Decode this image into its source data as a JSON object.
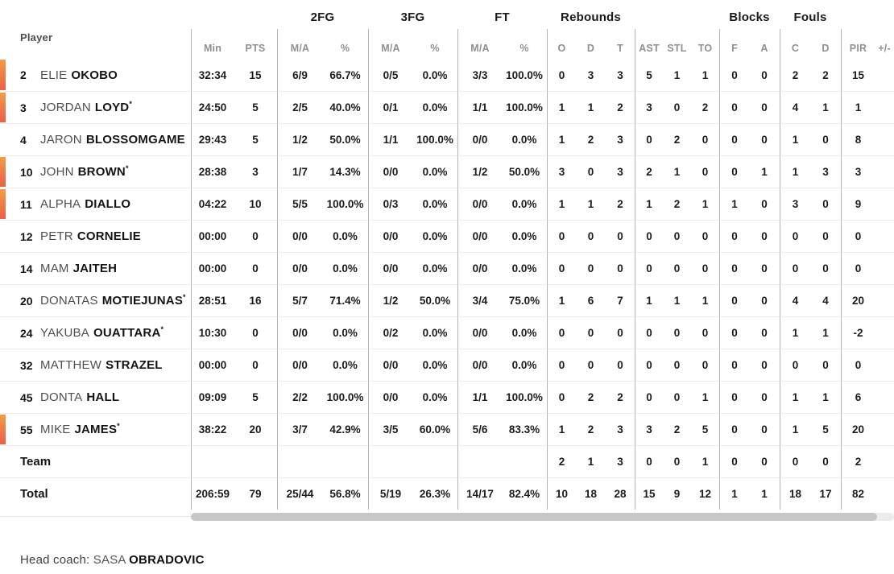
{
  "colors": {
    "on_court_bar_top": "#f59b47",
    "on_court_bar_bottom": "#ea5f45",
    "vertical_border": "#b2b2b2",
    "row_border": "#ededed",
    "subheader_text": "#909090",
    "scrollbar_thumb": "#c7c7c7"
  },
  "table": {
    "groups": {
      "fg2": "2FG",
      "fg3": "3FG",
      "ft": "FT",
      "rebounds": "Rebounds",
      "blocks": "Blocks",
      "fouls": "Fouls"
    },
    "headers": {
      "player": "Player",
      "min": "Min",
      "pts": "PTS",
      "ma": "M/A",
      "pct": "%",
      "reb_o": "O",
      "reb_d": "D",
      "reb_t": "T",
      "ast": "AST",
      "stl": "STL",
      "to": "TO",
      "blk_f": "F",
      "blk_a": "A",
      "foul_c": "C",
      "foul_d": "D",
      "pir": "PIR",
      "plus_minus": "+/-"
    },
    "starter_mark": "*",
    "players": [
      {
        "number": "2",
        "first": "ELIE",
        "last": "OKOBO",
        "starter": false,
        "on_court": true,
        "min": "32:34",
        "pts": "15",
        "fg2_ma": "6/9",
        "fg2_pct": "66.7%",
        "fg3_ma": "0/5",
        "fg3_pct": "0.0%",
        "ft_ma": "3/3",
        "ft_pct": "100.0%",
        "reb_o": "0",
        "reb_d": "3",
        "reb_t": "3",
        "ast": "5",
        "stl": "1",
        "to": "1",
        "blk_f": "0",
        "blk_a": "0",
        "foul_c": "2",
        "foul_d": "2",
        "pir": "15",
        "plus_minus": ""
      },
      {
        "number": "3",
        "first": "JORDAN",
        "last": "LOYD",
        "starter": true,
        "on_court": true,
        "min": "24:50",
        "pts": "5",
        "fg2_ma": "2/5",
        "fg2_pct": "40.0%",
        "fg3_ma": "0/1",
        "fg3_pct": "0.0%",
        "ft_ma": "1/1",
        "ft_pct": "100.0%",
        "reb_o": "1",
        "reb_d": "1",
        "reb_t": "2",
        "ast": "3",
        "stl": "0",
        "to": "2",
        "blk_f": "0",
        "blk_a": "0",
        "foul_c": "4",
        "foul_d": "1",
        "pir": "1",
        "plus_minus": ""
      },
      {
        "number": "4",
        "first": "JARON",
        "last": "BLOSSOMGAME",
        "starter": false,
        "on_court": false,
        "min": "29:43",
        "pts": "5",
        "fg2_ma": "1/2",
        "fg2_pct": "50.0%",
        "fg3_ma": "1/1",
        "fg3_pct": "100.0%",
        "ft_ma": "0/0",
        "ft_pct": "0.0%",
        "reb_o": "1",
        "reb_d": "2",
        "reb_t": "3",
        "ast": "0",
        "stl": "2",
        "to": "0",
        "blk_f": "0",
        "blk_a": "0",
        "foul_c": "1",
        "foul_d": "0",
        "pir": "8",
        "plus_minus": ""
      },
      {
        "number": "10",
        "first": "JOHN",
        "last": "BROWN",
        "starter": true,
        "on_court": true,
        "min": "28:38",
        "pts": "3",
        "fg2_ma": "1/7",
        "fg2_pct": "14.3%",
        "fg3_ma": "0/0",
        "fg3_pct": "0.0%",
        "ft_ma": "1/2",
        "ft_pct": "50.0%",
        "reb_o": "3",
        "reb_d": "0",
        "reb_t": "3",
        "ast": "2",
        "stl": "1",
        "to": "0",
        "blk_f": "0",
        "blk_a": "1",
        "foul_c": "1",
        "foul_d": "3",
        "pir": "3",
        "plus_minus": ""
      },
      {
        "number": "11",
        "first": "ALPHA",
        "last": "DIALLO",
        "starter": false,
        "on_court": true,
        "min": "04:22",
        "pts": "10",
        "fg2_ma": "5/5",
        "fg2_pct": "100.0%",
        "fg3_ma": "0/3",
        "fg3_pct": "0.0%",
        "ft_ma": "0/0",
        "ft_pct": "0.0%",
        "reb_o": "1",
        "reb_d": "1",
        "reb_t": "2",
        "ast": "1",
        "stl": "2",
        "to": "1",
        "blk_f": "1",
        "blk_a": "0",
        "foul_c": "3",
        "foul_d": "0",
        "pir": "9",
        "plus_minus": ""
      },
      {
        "number": "12",
        "first": "PETR",
        "last": "CORNELIE",
        "starter": false,
        "on_court": false,
        "min": "00:00",
        "pts": "0",
        "fg2_ma": "0/0",
        "fg2_pct": "0.0%",
        "fg3_ma": "0/0",
        "fg3_pct": "0.0%",
        "ft_ma": "0/0",
        "ft_pct": "0.0%",
        "reb_o": "0",
        "reb_d": "0",
        "reb_t": "0",
        "ast": "0",
        "stl": "0",
        "to": "0",
        "blk_f": "0",
        "blk_a": "0",
        "foul_c": "0",
        "foul_d": "0",
        "pir": "0",
        "plus_minus": ""
      },
      {
        "number": "14",
        "first": "MAM",
        "last": "JAITEH",
        "starter": false,
        "on_court": false,
        "min": "00:00",
        "pts": "0",
        "fg2_ma": "0/0",
        "fg2_pct": "0.0%",
        "fg3_ma": "0/0",
        "fg3_pct": "0.0%",
        "ft_ma": "0/0",
        "ft_pct": "0.0%",
        "reb_o": "0",
        "reb_d": "0",
        "reb_t": "0",
        "ast": "0",
        "stl": "0",
        "to": "0",
        "blk_f": "0",
        "blk_a": "0",
        "foul_c": "0",
        "foul_d": "0",
        "pir": "0",
        "plus_minus": ""
      },
      {
        "number": "20",
        "first": "DONATAS",
        "last": "MOTIEJUNAS",
        "starter": true,
        "on_court": false,
        "min": "28:51",
        "pts": "16",
        "fg2_ma": "5/7",
        "fg2_pct": "71.4%",
        "fg3_ma": "1/2",
        "fg3_pct": "50.0%",
        "ft_ma": "3/4",
        "ft_pct": "75.0%",
        "reb_o": "1",
        "reb_d": "6",
        "reb_t": "7",
        "ast": "1",
        "stl": "1",
        "to": "1",
        "blk_f": "0",
        "blk_a": "0",
        "foul_c": "4",
        "foul_d": "4",
        "pir": "20",
        "plus_minus": ""
      },
      {
        "number": "24",
        "first": "YAKUBA",
        "last": "OUATTARA",
        "starter": true,
        "on_court": false,
        "min": "10:30",
        "pts": "0",
        "fg2_ma": "0/0",
        "fg2_pct": "0.0%",
        "fg3_ma": "0/2",
        "fg3_pct": "0.0%",
        "ft_ma": "0/0",
        "ft_pct": "0.0%",
        "reb_o": "0",
        "reb_d": "0",
        "reb_t": "0",
        "ast": "0",
        "stl": "0",
        "to": "0",
        "blk_f": "0",
        "blk_a": "0",
        "foul_c": "1",
        "foul_d": "1",
        "pir": "-2",
        "plus_minus": ""
      },
      {
        "number": "32",
        "first": "MATTHEW",
        "last": "STRAZEL",
        "starter": false,
        "on_court": false,
        "min": "00:00",
        "pts": "0",
        "fg2_ma": "0/0",
        "fg2_pct": "0.0%",
        "fg3_ma": "0/0",
        "fg3_pct": "0.0%",
        "ft_ma": "0/0",
        "ft_pct": "0.0%",
        "reb_o": "0",
        "reb_d": "0",
        "reb_t": "0",
        "ast": "0",
        "stl": "0",
        "to": "0",
        "blk_f": "0",
        "blk_a": "0",
        "foul_c": "0",
        "foul_d": "0",
        "pir": "0",
        "plus_minus": ""
      },
      {
        "number": "45",
        "first": "DONTA",
        "last": "HALL",
        "starter": false,
        "on_court": false,
        "min": "09:09",
        "pts": "5",
        "fg2_ma": "2/2",
        "fg2_pct": "100.0%",
        "fg3_ma": "0/0",
        "fg3_pct": "0.0%",
        "ft_ma": "1/1",
        "ft_pct": "100.0%",
        "reb_o": "0",
        "reb_d": "2",
        "reb_t": "2",
        "ast": "0",
        "stl": "0",
        "to": "1",
        "blk_f": "0",
        "blk_a": "0",
        "foul_c": "1",
        "foul_d": "1",
        "pir": "6",
        "plus_minus": ""
      },
      {
        "number": "55",
        "first": "MIKE",
        "last": "JAMES",
        "starter": true,
        "on_court": true,
        "min": "38:22",
        "pts": "20",
        "fg2_ma": "3/7",
        "fg2_pct": "42.9%",
        "fg3_ma": "3/5",
        "fg3_pct": "60.0%",
        "ft_ma": "5/6",
        "ft_pct": "83.3%",
        "reb_o": "1",
        "reb_d": "2",
        "reb_t": "3",
        "ast": "3",
        "stl": "2",
        "to": "5",
        "blk_f": "0",
        "blk_a": "0",
        "foul_c": "1",
        "foul_d": "5",
        "pir": "20",
        "plus_minus": ""
      }
    ],
    "team_row": {
      "label": "Team",
      "on_court": false,
      "starter": false,
      "min": "",
      "pts": "",
      "fg2_ma": "",
      "fg2_pct": "",
      "fg3_ma": "",
      "fg3_pct": "",
      "ft_ma": "",
      "ft_pct": "",
      "reb_o": "2",
      "reb_d": "1",
      "reb_t": "3",
      "ast": "0",
      "stl": "0",
      "to": "1",
      "blk_f": "0",
      "blk_a": "0",
      "foul_c": "0",
      "foul_d": "0",
      "pir": "2",
      "plus_minus": ""
    },
    "total_row": {
      "label": "Total",
      "on_court": false,
      "starter": false,
      "min": "206:59",
      "pts": "79",
      "fg2_ma": "25/44",
      "fg2_pct": "56.8%",
      "fg3_ma": "5/19",
      "fg3_pct": "26.3%",
      "ft_ma": "14/17",
      "ft_pct": "82.4%",
      "reb_o": "10",
      "reb_d": "18",
      "reb_t": "28",
      "ast": "15",
      "stl": "9",
      "to": "12",
      "blk_f": "1",
      "blk_a": "1",
      "foul_c": "18",
      "foul_d": "17",
      "pir": "82",
      "plus_minus": ""
    }
  },
  "footer": {
    "head_coach_label": "Head coach:",
    "coach_first_name": "SASA",
    "coach_last_name": "OBRADOVIC"
  }
}
